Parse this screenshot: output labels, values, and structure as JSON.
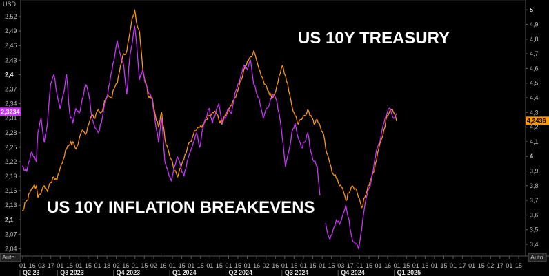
{
  "chart_data": {
    "type": "line",
    "annotations": {
      "top": "US 10Y TREASURY",
      "bottom": "US 10Y INFLATION BREAKEVENS"
    },
    "left_axis": {
      "unit": "USD",
      "ticks": [
        "2,52",
        "2,49",
        "2,46",
        "2,43",
        "2,4",
        "2,37",
        "2,34",
        "2,31",
        "2,28",
        "2,25",
        "2,22",
        "2,19",
        "2,16",
        "2,13",
        "2,1",
        "2,07",
        "2,04"
      ],
      "bold": [
        "2,4",
        "2,1"
      ],
      "range": [
        2.025,
        2.54
      ],
      "current_value": "2,3234",
      "current_value_color": "#cc33ff"
    },
    "right_axis": {
      "ticks": [
        "5",
        "4,9",
        "4,8",
        "4,7",
        "4,6",
        "4,5",
        "4,4",
        "4,3",
        "4,2",
        "4,1",
        "4",
        "3,9",
        "3,8",
        "3,7",
        "3,6",
        "3,5",
        "3,4"
      ],
      "bold": [
        "5",
        "4"
      ],
      "range": [
        3.32,
        5.02
      ],
      "current_value": "4,2436",
      "current_value_color": "#ff9900"
    },
    "auto_left": "Auto",
    "auto_right": "Auto",
    "x_ticks": [
      "01",
      "16",
      "03",
      "17",
      "01",
      "15",
      "01",
      "15",
      "01",
      "18",
      "02",
      "16",
      "01",
      "15",
      "02",
      "16",
      "01",
      "15",
      "01",
      "15",
      "01",
      "15",
      "01",
      "15",
      "01",
      "16",
      "02",
      "16",
      "01",
      "15",
      "01",
      "15",
      "01",
      "15",
      "03",
      "17",
      "01",
      "15",
      "01",
      "16",
      "01",
      "15",
      "01",
      "16",
      "01",
      "15",
      "01",
      "17",
      "01",
      "15",
      "02",
      "17",
      "01",
      "15"
    ],
    "periods": [
      {
        "label": "Q2 23",
        "col": 0
      },
      {
        "label": "Q3 2023",
        "col": 4
      },
      {
        "label": "Q4 2023",
        "col": 10
      },
      {
        "label": "Q1 2024",
        "col": 16
      },
      {
        "label": "Q2 2024",
        "col": 22
      },
      {
        "label": "Q3 2024",
        "col": 28
      },
      {
        "label": "Q4 2024",
        "col": 34
      },
      {
        "label": "Q1 2025",
        "col": 40
      }
    ],
    "series": [
      {
        "name": "US 10Y TREASURY",
        "color": "#ff9900",
        "axis": "right",
        "points": [
          [
            0,
            3.63
          ],
          [
            3,
            3.7
          ],
          [
            6,
            3.78
          ],
          [
            9,
            3.8
          ],
          [
            10,
            3.72
          ],
          [
            12,
            3.75
          ],
          [
            14,
            3.8
          ],
          [
            16,
            3.76
          ],
          [
            18,
            3.82
          ],
          [
            20,
            3.86
          ],
          [
            22,
            3.84
          ],
          [
            24,
            3.92
          ],
          [
            26,
            3.98
          ],
          [
            28,
            4.05
          ],
          [
            30,
            4.08
          ],
          [
            32,
            4.1
          ],
          [
            34,
            4.05
          ],
          [
            36,
            4.12
          ],
          [
            38,
            4.18
          ],
          [
            40,
            4.15
          ],
          [
            42,
            4.22
          ],
          [
            44,
            4.28
          ],
          [
            46,
            4.26
          ],
          [
            48,
            4.32
          ],
          [
            50,
            4.3
          ],
          [
            52,
            4.38
          ],
          [
            54,
            4.42
          ],
          [
            56,
            4.4
          ],
          [
            58,
            4.46
          ],
          [
            60,
            4.5
          ],
          [
            62,
            4.62
          ],
          [
            64,
            4.7
          ],
          [
            66,
            4.72
          ],
          [
            68,
            4.85
          ],
          [
            70,
            4.96
          ],
          [
            71,
            5.0
          ],
          [
            72,
            4.92
          ],
          [
            74,
            4.85
          ],
          [
            76,
            4.6
          ],
          [
            78,
            4.5
          ],
          [
            80,
            4.4
          ],
          [
            82,
            4.4
          ],
          [
            84,
            4.28
          ],
          [
            86,
            4.2
          ],
          [
            88,
            4.3
          ],
          [
            90,
            4.12
          ],
          [
            92,
            4.05
          ],
          [
            94,
            3.98
          ],
          [
            96,
            3.9
          ],
          [
            98,
            3.86
          ],
          [
            100,
            3.92
          ],
          [
            102,
            3.98
          ],
          [
            104,
            4.05
          ],
          [
            106,
            4.1
          ],
          [
            108,
            4.15
          ],
          [
            110,
            4.18
          ],
          [
            112,
            4.2
          ],
          [
            114,
            4.22
          ],
          [
            116,
            4.25
          ],
          [
            118,
            4.28
          ],
          [
            120,
            4.3
          ],
          [
            122,
            4.3
          ],
          [
            124,
            4.25
          ],
          [
            126,
            4.22
          ],
          [
            128,
            4.28
          ],
          [
            130,
            4.32
          ],
          [
            132,
            4.35
          ],
          [
            134,
            4.4
          ],
          [
            136,
            4.45
          ],
          [
            138,
            4.52
          ],
          [
            140,
            4.6
          ],
          [
            142,
            4.65
          ],
          [
            144,
            4.68
          ],
          [
            146,
            4.72
          ],
          [
            148,
            4.65
          ],
          [
            150,
            4.58
          ],
          [
            152,
            4.52
          ],
          [
            154,
            4.48
          ],
          [
            156,
            4.42
          ],
          [
            158,
            4.4
          ],
          [
            160,
            4.45
          ],
          [
            162,
            4.55
          ],
          [
            164,
            4.62
          ],
          [
            166,
            4.55
          ],
          [
            168,
            4.45
          ],
          [
            170,
            4.35
          ],
          [
            172,
            4.28
          ],
          [
            174,
            4.22
          ],
          [
            176,
            4.25
          ],
          [
            178,
            4.28
          ],
          [
            180,
            4.32
          ],
          [
            182,
            4.28
          ],
          [
            184,
            4.22
          ],
          [
            186,
            4.25
          ],
          [
            188,
            4.2
          ],
          [
            190,
            4.15
          ],
          [
            192,
            4.02
          ],
          [
            194,
            3.95
          ],
          [
            196,
            3.88
          ],
          [
            198,
            3.85
          ],
          [
            200,
            3.8
          ],
          [
            202,
            3.78
          ],
          [
            204,
            3.7
          ],
          [
            206,
            3.75
          ],
          [
            208,
            3.8
          ],
          [
            210,
            3.78
          ],
          [
            212,
            3.72
          ],
          [
            214,
            3.65
          ],
          [
            216,
            3.72
          ],
          [
            218,
            3.8
          ],
          [
            220,
            3.85
          ],
          [
            222,
            3.9
          ],
          [
            224,
            4.02
          ],
          [
            226,
            4.1
          ],
          [
            228,
            4.18
          ],
          [
            230,
            4.28
          ],
          [
            232,
            4.32
          ],
          [
            234,
            4.3
          ],
          [
            236,
            4.24
          ]
        ]
      },
      {
        "name": "US 10Y INFLATION BREAKEVENS",
        "color": "#cc33ff",
        "axis": "left",
        "points": [
          [
            0,
            2.21
          ],
          [
            3,
            2.2
          ],
          [
            6,
            2.24
          ],
          [
            9,
            2.22
          ],
          [
            10,
            2.28
          ],
          [
            12,
            2.31
          ],
          [
            14,
            2.26
          ],
          [
            16,
            2.3
          ],
          [
            18,
            2.38
          ],
          [
            20,
            2.4
          ],
          [
            22,
            2.36
          ],
          [
            24,
            2.33
          ],
          [
            26,
            2.36
          ],
          [
            28,
            2.4
          ],
          [
            30,
            2.32
          ],
          [
            32,
            2.3
          ],
          [
            34,
            2.33
          ],
          [
            36,
            2.32
          ],
          [
            38,
            2.35
          ],
          [
            40,
            2.38
          ],
          [
            42,
            2.36
          ],
          [
            44,
            2.31
          ],
          [
            46,
            2.29
          ],
          [
            48,
            2.28
          ],
          [
            50,
            2.3
          ],
          [
            52,
            2.34
          ],
          [
            54,
            2.36
          ],
          [
            56,
            2.4
          ],
          [
            58,
            2.43
          ],
          [
            60,
            2.47
          ],
          [
            62,
            2.44
          ],
          [
            64,
            2.42
          ],
          [
            66,
            2.36
          ],
          [
            68,
            2.44
          ],
          [
            70,
            2.48
          ],
          [
            71,
            2.5
          ],
          [
            72,
            2.47
          ],
          [
            74,
            2.39
          ],
          [
            76,
            2.41
          ],
          [
            78,
            2.38
          ],
          [
            80,
            2.36
          ],
          [
            82,
            2.35
          ],
          [
            84,
            2.3
          ],
          [
            86,
            2.26
          ],
          [
            88,
            2.31
          ],
          [
            90,
            2.22
          ],
          [
            92,
            2.2
          ],
          [
            94,
            2.18
          ],
          [
            96,
            2.21
          ],
          [
            98,
            2.23
          ],
          [
            100,
            2.21
          ],
          [
            102,
            2.19
          ],
          [
            104,
            2.22
          ],
          [
            106,
            2.24
          ],
          [
            108,
            2.26
          ],
          [
            110,
            2.28
          ],
          [
            112,
            2.25
          ],
          [
            114,
            2.29
          ],
          [
            116,
            2.31
          ],
          [
            118,
            2.33
          ],
          [
            120,
            2.3
          ],
          [
            122,
            2.32
          ],
          [
            124,
            2.34
          ],
          [
            126,
            2.3
          ],
          [
            128,
            2.31
          ],
          [
            130,
            2.33
          ],
          [
            132,
            2.32
          ],
          [
            134,
            2.36
          ],
          [
            136,
            2.38
          ],
          [
            138,
            2.4
          ],
          [
            140,
            2.42
          ],
          [
            142,
            2.41
          ],
          [
            144,
            2.43
          ],
          [
            146,
            2.38
          ],
          [
            148,
            2.36
          ],
          [
            150,
            2.34
          ],
          [
            152,
            2.31
          ],
          [
            154,
            2.33
          ],
          [
            156,
            2.34
          ],
          [
            158,
            2.36
          ],
          [
            160,
            2.35
          ],
          [
            162,
            2.32
          ],
          [
            164,
            2.27
          ],
          [
            166,
            2.21
          ],
          [
            168,
            2.24
          ],
          [
            170,
            2.28
          ],
          [
            172,
            2.3
          ],
          [
            174,
            2.27
          ],
          [
            176,
            2.25
          ],
          [
            178,
            2.26
          ],
          [
            180,
            2.28
          ],
          [
            182,
            2.24
          ],
          [
            184,
            2.22
          ],
          [
            186,
            2.21
          ],
          [
            188,
            2.14
          ],
          [
            190,
            2.12
          ],
          [
            192,
            2.08
          ],
          [
            194,
            2.06
          ],
          [
            196,
            2.08
          ],
          [
            198,
            2.1
          ],
          [
            200,
            2.09
          ],
          [
            202,
            2.11
          ],
          [
            204,
            2.13
          ],
          [
            206,
            2.1
          ],
          [
            208,
            2.06
          ],
          [
            210,
            2.05
          ],
          [
            212,
            2.04
          ],
          [
            214,
            2.08
          ],
          [
            216,
            2.13
          ],
          [
            218,
            2.16
          ],
          [
            220,
            2.18
          ],
          [
            222,
            2.22
          ],
          [
            224,
            2.25
          ],
          [
            226,
            2.27
          ],
          [
            228,
            2.3
          ],
          [
            230,
            2.32
          ],
          [
            232,
            2.33
          ],
          [
            234,
            2.31
          ],
          [
            236,
            2.32
          ]
        ]
      }
    ]
  }
}
